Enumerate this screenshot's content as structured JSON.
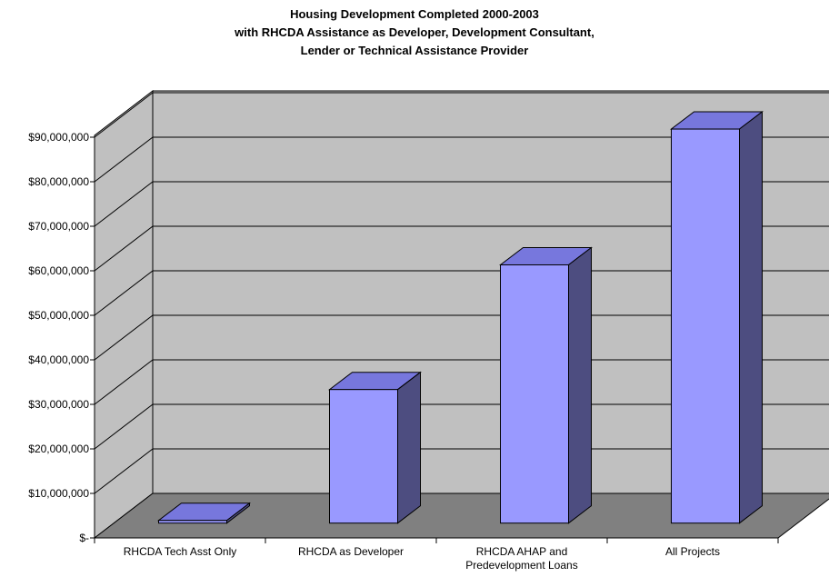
{
  "chart_data": {
    "type": "bar",
    "title_lines": [
      "Housing Development Completed 2000-2003",
      "with RHCDA Assistance as Developer, Development Consultant,",
      "Lender or Technical Assistance Provider"
    ],
    "categories": [
      [
        "RHCDA Tech Asst Only"
      ],
      [
        "RHCDA as Developer"
      ],
      [
        "RHCDA AHAP and",
        "Predevelopment Loans"
      ],
      [
        "All Projects"
      ]
    ],
    "values": [
      600000,
      30000000,
      58000000,
      88500000
    ],
    "ylim": [
      0,
      90000000
    ],
    "yticks": [
      0,
      10000000,
      20000000,
      30000000,
      40000000,
      50000000,
      60000000,
      70000000,
      80000000,
      90000000
    ],
    "ytick_labels": [
      "$-",
      "$10,000,000",
      "$20,000,000",
      "$30,000,000",
      "$40,000,000",
      "$50,000,000",
      "$60,000,000",
      "$70,000,000",
      "$80,000,000",
      "$90,000,000"
    ],
    "grid": true,
    "style": "3d-column",
    "colors": {
      "bar_front": "#9999ff",
      "bar_top": "#7777dd",
      "bar_side": "#4d4d80",
      "back_wall": "#c0c0c0",
      "side_wall": "#c0c0c0",
      "floor": "#808080",
      "gridline": "#000000"
    }
  }
}
